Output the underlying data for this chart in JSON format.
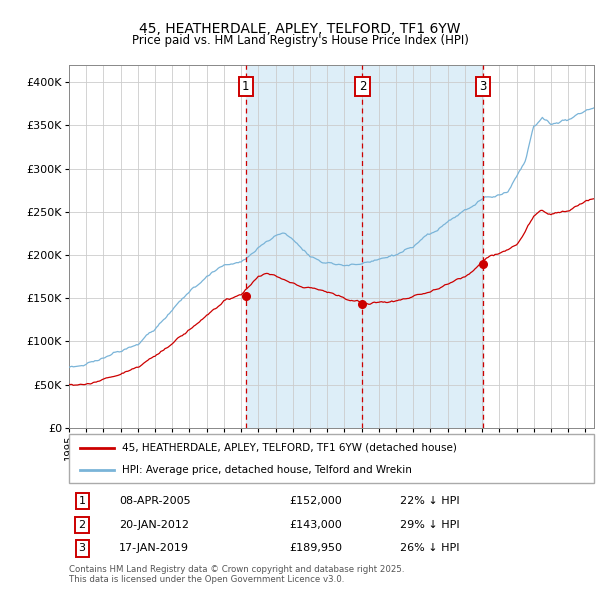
{
  "title": "45, HEATHERDALE, APLEY, TELFORD, TF1 6YW",
  "subtitle": "Price paid vs. HM Land Registry's House Price Index (HPI)",
  "legend_label_red": "45, HEATHERDALE, APLEY, TELFORD, TF1 6YW (detached house)",
  "legend_label_blue": "HPI: Average price, detached house, Telford and Wrekin",
  "sale1_date": "08-APR-2005",
  "sale1_price": "£152,000",
  "sale1_hpi": "22% ↓ HPI",
  "sale1_year": 2005.27,
  "sale1_value": 152000,
  "sale2_date": "20-JAN-2012",
  "sale2_price": "£143,000",
  "sale2_hpi": "29% ↓ HPI",
  "sale2_year": 2012.05,
  "sale2_value": 143000,
  "sale3_date": "17-JAN-2019",
  "sale3_price": "£189,950",
  "sale3_hpi": "26% ↓ HPI",
  "sale3_year": 2019.05,
  "sale3_value": 189950,
  "footnote1": "Contains HM Land Registry data © Crown copyright and database right 2025.",
  "footnote2": "This data is licensed under the Open Government Licence v3.0.",
  "hpi_color": "#7ab4d8",
  "price_color": "#cc0000",
  "vline_color": "#cc0000",
  "bg_fill_color": "#ddeef8",
  "grid_color": "#cccccc",
  "ylim_max": 420000,
  "xlim_start": 1995.0,
  "xlim_end": 2025.5
}
